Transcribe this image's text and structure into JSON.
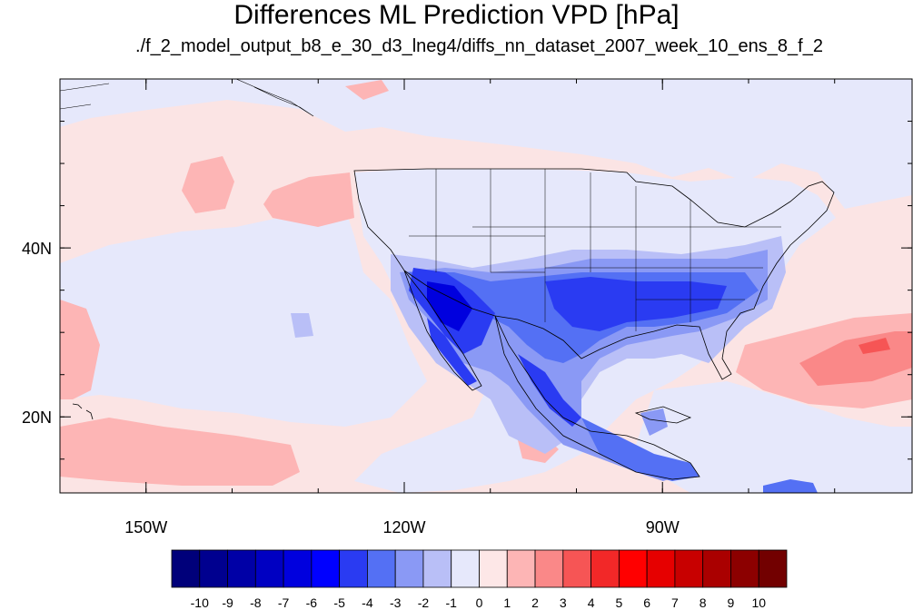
{
  "title": "Differences ML Prediction VPD [hPa]",
  "subtitle": "./f_2_model_output_b8_e_30_d3_lneg4/diffs_nn_dataset_2007_week_10_ens_8_f_2",
  "map": {
    "lon_ticks": [
      {
        "label": "150W",
        "lon": -150
      },
      {
        "label": "120W",
        "lon": -120
      },
      {
        "label": "90W",
        "lon": -90
      }
    ],
    "lat_ticks": [
      {
        "label": "40N",
        "lat": 40
      },
      {
        "label": "20N",
        "lat": 20
      }
    ],
    "lon_range": [
      -160,
      -61
    ],
    "lat_range": [
      11,
      60
    ],
    "background_color": "#fbe4e4"
  },
  "colorbar": {
    "labels": [
      "-10",
      "-9",
      "-8",
      "-7",
      "-6",
      "-5",
      "-4",
      "-3",
      "-2",
      "-1",
      "0",
      "1",
      "2",
      "3",
      "4",
      "5",
      "6",
      "7",
      "8",
      "9",
      "10"
    ],
    "colors": [
      "#00007a",
      "#00008f",
      "#0000a6",
      "#0000c2",
      "#0000de",
      "#0000ff",
      "#2a3bf2",
      "#5470f4",
      "#8a99f5",
      "#b9bff7",
      "#e6e8fb",
      "#fde7e7",
      "#fdb5b5",
      "#fa8888",
      "#f65555",
      "#f22828",
      "#ff0000",
      "#e60000",
      "#c80000",
      "#aa0000",
      "#8c0000",
      "#720000"
    ]
  }
}
